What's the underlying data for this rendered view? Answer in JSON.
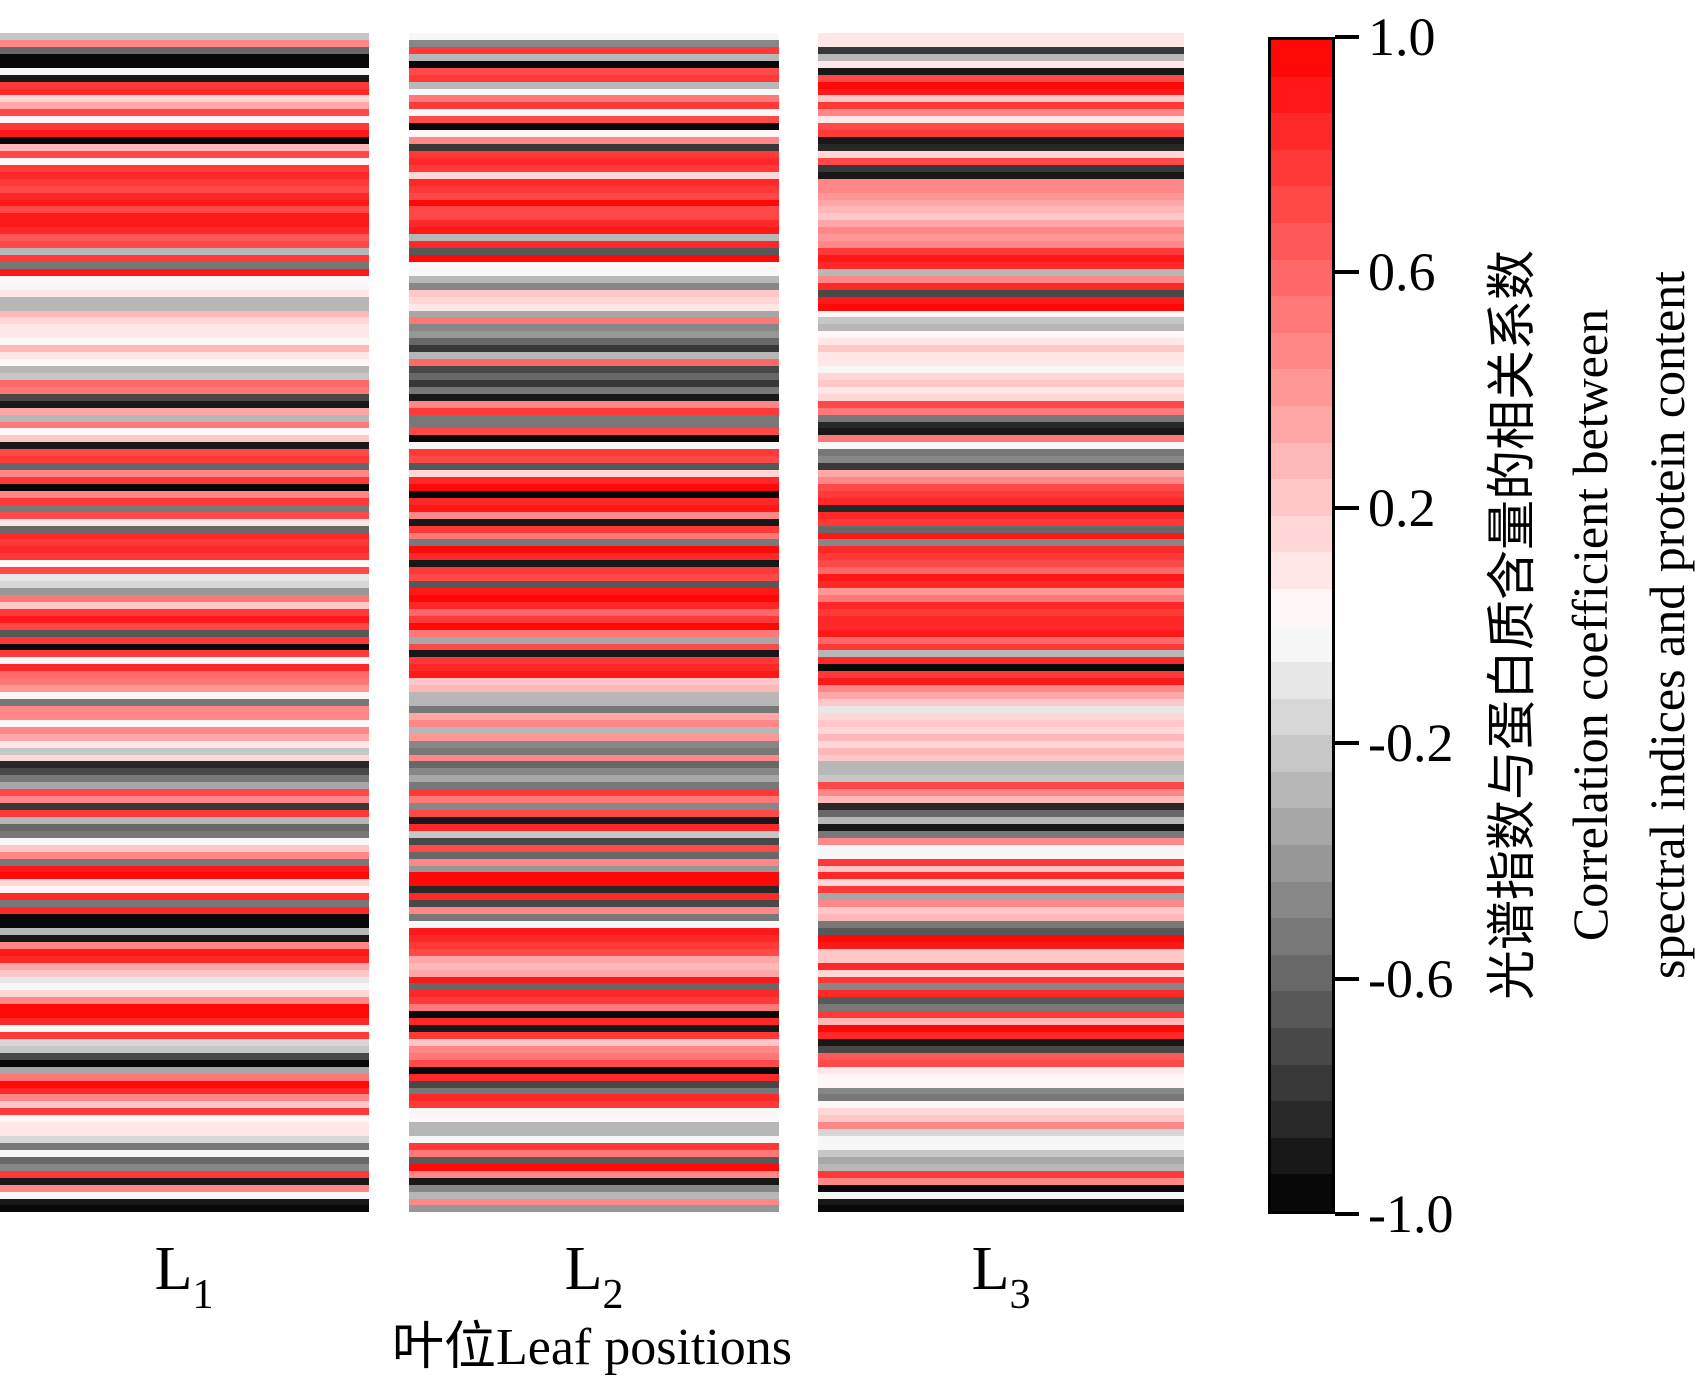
{
  "figure": {
    "background": "#ffffff"
  },
  "x_axis": {
    "label": "叶位Leaf positions",
    "tick_labels": [
      {
        "main": "L",
        "sub": "1"
      },
      {
        "main": "L",
        "sub": "2"
      },
      {
        "main": "L",
        "sub": "3"
      }
    ]
  },
  "colorbar": {
    "ticks": [
      "1.0",
      "0.6",
      "0.2",
      "-0.2",
      "-0.6",
      "-1.0"
    ],
    "tick_values": [
      1.0,
      0.6,
      0.2,
      -0.2,
      -0.6,
      -1.0
    ],
    "min": -1.0,
    "max": 1.0,
    "levels": 32,
    "colors": {
      "positive_max": "#ff0000",
      "zero": "#ffffff",
      "negative_min": "#000000"
    },
    "title_lines": [
      "光谱指数与蛋白质含量的相关系数",
      "Correlation coefficient between",
      "spectral indices and protein content"
    ]
  },
  "chart_data": {
    "type": "heatmap",
    "title": "",
    "xlabel": "叶位Leaf positions",
    "categories": [
      "L1",
      "L2",
      "L3"
    ],
    "value_range": [
      -1,
      1
    ],
    "colormap": "discrete 32-level red(+1) → white(0) → black(−1)",
    "legend_position": "right colorbar",
    "colorbar_ticks": [
      1.0,
      0.6,
      0.2,
      -0.2,
      -0.6,
      -1.0
    ],
    "colorbar_label_zh": "光谱指数与蛋白质含量的相关系数",
    "colorbar_label_en": "Correlation coefficient between spectral indices and protein content",
    "rows": 170,
    "series": [
      {
        "name": "L1",
        "values": [
          -0.2,
          0.5,
          -0.6,
          -0.95,
          -0.95,
          -0.05,
          -0.9,
          0.8,
          0.85,
          0.15,
          0.35,
          0.75,
          0.02,
          0.8,
          0.9,
          -0.95,
          0.3,
          0.7,
          0.02,
          0.8,
          0.85,
          0.8,
          0.7,
          0.85,
          0.9,
          0.72,
          0.88,
          0.9,
          0.85,
          0.65,
          0.75,
          -0.3,
          0.8,
          -0.5,
          0.9,
          0.02,
          0.0,
          0.08,
          -0.25,
          -0.25,
          0.3,
          0.15,
          0.08,
          0.12,
          0.03,
          0.3,
          0.1,
          0.05,
          -0.3,
          -0.2,
          0.6,
          0.55,
          -0.7,
          -0.9,
          0.35,
          -0.3,
          0.55,
          0.05,
          0.2,
          -0.9,
          0.75,
          0.8,
          -0.6,
          0.5,
          0.8,
          -0.95,
          0.45,
          0.8,
          -0.5,
          0.75,
          0.1,
          -0.6,
          0.85,
          0.8,
          0.85,
          0.8,
          0.02,
          0.75,
          -0.1,
          -0.15,
          -0.4,
          0.55,
          0.2,
          0.8,
          0.9,
          0.75,
          -0.65,
          0.8,
          -0.95,
          0.8,
          0.02,
          0.85,
          0.6,
          0.55,
          0.4,
          0.05,
          -0.5,
          0.45,
          0.5,
          0.02,
          0.5,
          0.35,
          0.1,
          -0.2,
          0.15,
          -0.85,
          -0.7,
          -0.55,
          -0.35,
          0.75,
          0.5,
          -0.8,
          0.8,
          -0.3,
          -0.6,
          -0.5,
          -0.05,
          0.2,
          0.5,
          -0.5,
          0.9,
          0.95,
          0.15,
          0.02,
          0.85,
          -0.5,
          0.85,
          -0.95,
          -0.95,
          -0.3,
          -0.9,
          0.5,
          0.9,
          0.85,
          0.35,
          0.2,
          -0.1,
          0.0,
          0.15,
          0.45,
          0.95,
          0.95,
          0.85,
          0.05,
          0.8,
          -0.15,
          -0.2,
          -0.7,
          -0.95,
          -0.35,
          0.55,
          0.95,
          0.85,
          0.5,
          0.2,
          0.8,
          0.02,
          0.12,
          0.08,
          -0.15,
          -0.5,
          -0.05,
          -0.6,
          -0.45,
          0.8,
          -0.9,
          0.5,
          -0.05,
          -0.9,
          -0.95
        ]
      },
      {
        "name": "L2",
        "values": [
          -0.05,
          -0.45,
          0.8,
          -0.25,
          -0.95,
          0.75,
          0.8,
          -0.3,
          -0.05,
          0.55,
          0.8,
          0.0,
          0.75,
          -0.95,
          0.05,
          0.5,
          -0.75,
          0.8,
          0.85,
          0.8,
          0.15,
          0.85,
          0.8,
          0.75,
          0.95,
          0.7,
          0.7,
          0.85,
          0.9,
          -0.3,
          0.85,
          -0.65,
          0.95,
          0.02,
          0.0,
          -0.3,
          -0.45,
          0.25,
          0.15,
          0.1,
          -0.35,
          0.55,
          -0.45,
          -0.4,
          -0.6,
          -0.75,
          -0.3,
          0.6,
          -0.7,
          -0.6,
          -0.8,
          -0.5,
          -0.9,
          0.45,
          0.8,
          -0.5,
          -0.5,
          0.7,
          -0.95,
          0.0,
          0.8,
          0.75,
          -0.65,
          0.15,
          0.85,
          0.95,
          -0.95,
          0.85,
          0.9,
          0.5,
          -0.9,
          0.8,
          0.55,
          -0.5,
          0.95,
          0.85,
          -0.9,
          0.8,
          0.75,
          -0.65,
          0.9,
          0.95,
          0.85,
          0.6,
          0.8,
          0.95,
          0.55,
          -0.35,
          0.75,
          -0.9,
          0.8,
          0.85,
          0.9,
          0.2,
          0.3,
          -0.3,
          -0.25,
          -0.55,
          0.35,
          0.5,
          -0.3,
          0.4,
          -0.45,
          -0.5,
          0.5,
          -0.6,
          -0.45,
          -0.35,
          -0.5,
          0.8,
          0.55,
          -0.45,
          0.75,
          -0.9,
          0.85,
          -0.2,
          -0.7,
          0.7,
          -0.6,
          0.5,
          -0.4,
          0.95,
          0.95,
          -0.85,
          0.85,
          -0.7,
          0.45,
          -0.5,
          -0.05,
          0.9,
          0.85,
          0.8,
          0.75,
          0.35,
          0.3,
          0.35,
          0.9,
          -0.6,
          0.85,
          0.8,
          0.55,
          -0.95,
          0.85,
          -0.9,
          0.8,
          0.2,
          0.5,
          0.55,
          0.7,
          -0.95,
          0.85,
          -0.7,
          -0.5,
          0.85,
          0.8,
          -0.02,
          0.05,
          -0.3,
          -0.25,
          -0.05,
          0.8,
          0.55,
          -0.65,
          0.95,
          0.5,
          -0.9,
          -0.45,
          -0.3,
          0.5,
          -0.4
        ]
      },
      {
        "name": "L3",
        "values": [
          0.1,
          0.12,
          -0.8,
          -0.25,
          0.1,
          -0.9,
          0.7,
          0.95,
          0.9,
          0.2,
          0.8,
          0.5,
          0.1,
          0.75,
          0.8,
          -0.9,
          -0.85,
          0.15,
          0.75,
          -0.8,
          -0.9,
          0.5,
          0.45,
          0.4,
          0.35,
          0.3,
          0.25,
          0.35,
          0.45,
          0.4,
          0.5,
          0.8,
          0.9,
          0.85,
          -0.3,
          0.5,
          0.85,
          -0.7,
          0.9,
          0.95,
          0.02,
          -0.2,
          -0.25,
          0.05,
          0.12,
          0.2,
          0.1,
          0.08,
          0.0,
          0.15,
          0.25,
          0.1,
          0.15,
          0.75,
          0.55,
          -0.5,
          -0.85,
          -0.9,
          0.55,
          -0.02,
          -0.5,
          -0.45,
          -0.75,
          0.35,
          0.5,
          0.7,
          0.8,
          0.85,
          -0.85,
          0.85,
          0.8,
          -0.6,
          0.9,
          -0.45,
          0.85,
          0.8,
          0.75,
          0.6,
          0.9,
          0.85,
          0.4,
          0.55,
          0.85,
          0.8,
          0.85,
          0.85,
          0.9,
          0.6,
          0.8,
          -0.3,
          0.85,
          -0.95,
          0.8,
          0.9,
          0.45,
          0.35,
          0.25,
          -0.08,
          0.18,
          0.22,
          0.18,
          0.28,
          0.15,
          0.3,
          0.2,
          -0.3,
          -0.25,
          -0.2,
          0.7,
          0.5,
          0.3,
          -0.85,
          -0.6,
          -0.3,
          -0.9,
          -0.5,
          0.5,
          0.0,
          -0.02,
          0.8,
          0.2,
          0.85,
          0.15,
          0.8,
          -0.35,
          0.5,
          0.2,
          0.3,
          -0.5,
          -0.65,
          0.95,
          0.9,
          0.2,
          0.25,
          0.85,
          0.15,
          0.8,
          -0.45,
          0.85,
          -0.65,
          -0.5,
          0.8,
          0.3,
          0.95,
          0.85,
          -0.9,
          -0.7,
          0.65,
          0.75,
          0.08,
          0.02,
          0.05,
          -0.45,
          -0.5,
          0.06,
          0.15,
          0.2,
          0.45,
          -0.15,
          -0.05,
          0.0,
          -0.2,
          -0.35,
          -0.3,
          0.8,
          0.5,
          -0.95,
          -0.05,
          -0.9,
          -0.95
        ]
      }
    ]
  }
}
